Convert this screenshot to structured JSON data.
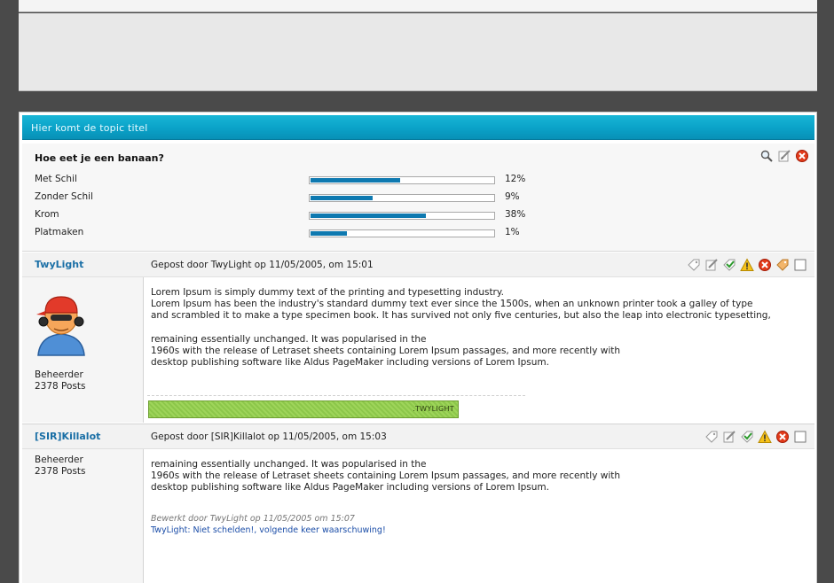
{
  "topic": {
    "title": "Hier komt  de topic titel"
  },
  "poll": {
    "question": "Hoe eet je een banaan?",
    "tools": [
      "magnifier-icon",
      "edit-icon",
      "delete-icon"
    ],
    "options": [
      {
        "label": "Met Schil",
        "percent_text": "12%",
        "fill_fraction": 0.49
      },
      {
        "label": "Zonder Schil",
        "percent_text": "9%",
        "fill_fraction": 0.34
      },
      {
        "label": "Krom",
        "percent_text": "38%",
        "fill_fraction": 0.63
      },
      {
        "label": "Platmaken",
        "percent_text": "1%",
        "fill_fraction": 0.2
      }
    ]
  },
  "posts": [
    {
      "author": "TwyLight",
      "posted_by": "Gepost door TwyLight op 11/05/2005, om 15:01",
      "role": "Beheerder",
      "post_count": "2378 Posts",
      "body_lines": [
        "Lorem Ipsum is simply dummy text of the printing and typesetting industry.",
        "Lorem Ipsum has been the industry's standard dummy text ever since the 1500s, when an unknown printer took a galley of type",
        "and scrambled it to make a type specimen book. It has survived not only five centuries, but also the leap into electronic typesetting,",
        "",
        "remaining essentially unchanged. It was popularised in the",
        "1960s with the release of Letraset sheets containing Lorem Ipsum passages, and more recently with",
        "desktop publishing software like Aldus PageMaker including versions of Lorem Ipsum."
      ],
      "signature_text": ".TWYLIGHT"
    },
    {
      "author": "[SIR]Killalot",
      "posted_by": "Gepost door [SIR]Killalot op 11/05/2005, om 15:03",
      "role": "Beheerder",
      "post_count": "2378 Posts",
      "body_lines": [
        "remaining essentially unchanged. It was popularised in the",
        "1960s with the release of Letraset sheets containing Lorem Ipsum passages, and more recently with",
        "desktop publishing software like Aldus PageMaker including versions of Lorem Ipsum."
      ],
      "edit_note": "Bewerkt door TwyLight op 11/05/2005 om 15:07",
      "mod_note": "TwyLight: Niet schelden!, volgende keer waarschuwing!"
    }
  ],
  "colors": {
    "header_accent": "#0aa2c8",
    "author_link": "#1a6fa6",
    "poll_bar": "#0e79b0",
    "mod_note": "#1c4ea8"
  }
}
